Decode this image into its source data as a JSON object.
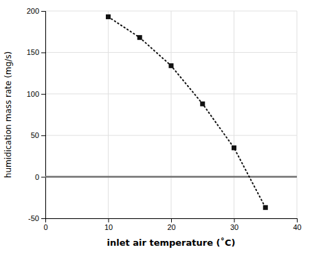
{
  "chart_data": {
    "type": "line",
    "xlabel": "inlet air temperature  (˚C)",
    "ylabel": "humidication mass rate (mg/s)",
    "x": [
      10,
      15,
      20,
      25,
      30,
      35
    ],
    "values": [
      193,
      168,
      134,
      88,
      35,
      -37
    ],
    "color": "#111111",
    "marker": "square",
    "line_style": "dotted",
    "xlim": [
      0,
      40
    ],
    "ylim": [
      -50,
      200
    ],
    "xticks": [
      0,
      10,
      20,
      30,
      40
    ],
    "yticks": [
      -50,
      0,
      50,
      100,
      150,
      200
    ],
    "hline_y": 0,
    "grid": true
  }
}
